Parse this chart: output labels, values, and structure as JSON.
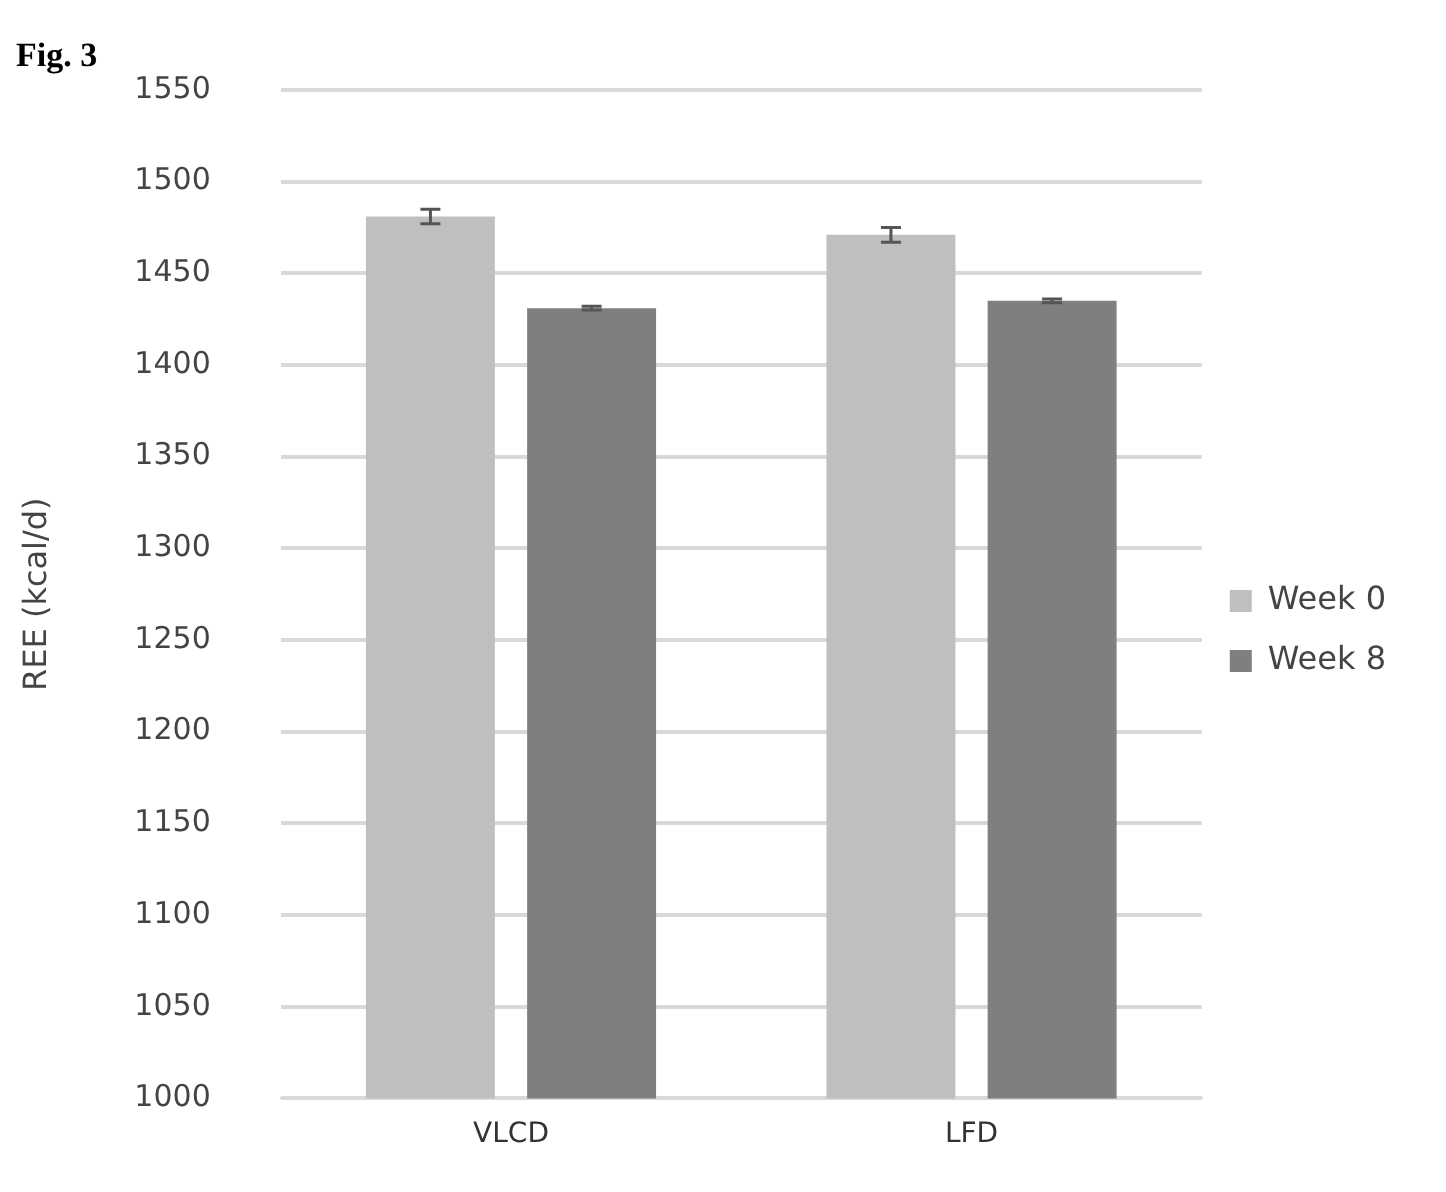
{
  "chart_data": {
    "type": "bar",
    "title": "Fig. 3",
    "ylabel": "REE (kcal/d)",
    "categories": [
      "VLCD",
      "LFD"
    ],
    "series": [
      {
        "name": "Week 0",
        "color": "#bfbfbf",
        "values": [
          1481,
          1471
        ],
        "errors": [
          4,
          4
        ]
      },
      {
        "name": "Week 8",
        "color": "#7f7f7f",
        "values": [
          1431,
          1435
        ],
        "errors": [
          1,
          1
        ]
      }
    ],
    "ylim": [
      1000,
      1550
    ],
    "yticks": [
      1000,
      1050,
      1100,
      1150,
      1200,
      1250,
      1300,
      1350,
      1400,
      1450,
      1500,
      1550
    ],
    "grid": "y",
    "legend": "right"
  }
}
